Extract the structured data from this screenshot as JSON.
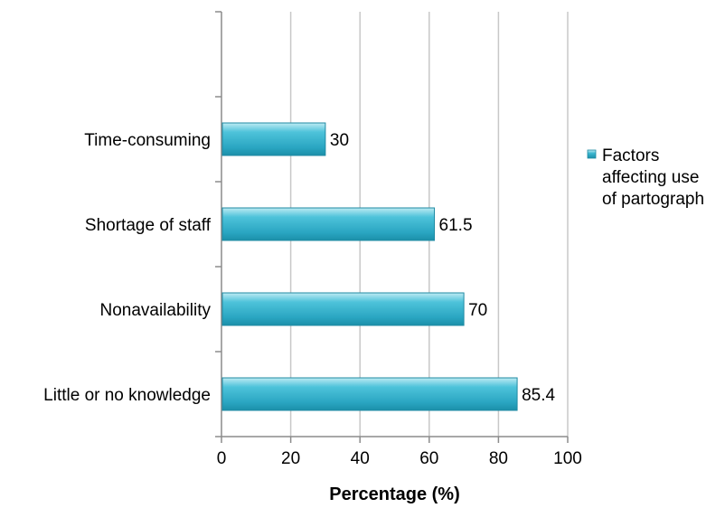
{
  "chart_data": {
    "type": "bar",
    "orientation": "horizontal",
    "categories": [
      "Time-consuming",
      "Shortage of staff",
      "Nonavailability",
      "Little or no knowledge"
    ],
    "series": [
      {
        "name": "Factors affecting use of partograph",
        "values": [
          30,
          61.5,
          70,
          85.4
        ],
        "data_labels": [
          "30",
          "61.5",
          "70",
          "85.4"
        ]
      }
    ],
    "xlabel": "Percentage (%)",
    "ylabel": "",
    "xlim": [
      0,
      100
    ],
    "x_ticks": [
      0,
      20,
      40,
      60,
      80,
      100
    ],
    "x_tick_labels": [
      "0",
      "20",
      "40",
      "60",
      "80",
      "100"
    ],
    "grid": "vertical",
    "legend_position": "right",
    "legend_lines": [
      "Factors",
      "affecting use",
      "of partograph"
    ],
    "bar_color": "#3bb6cf"
  }
}
